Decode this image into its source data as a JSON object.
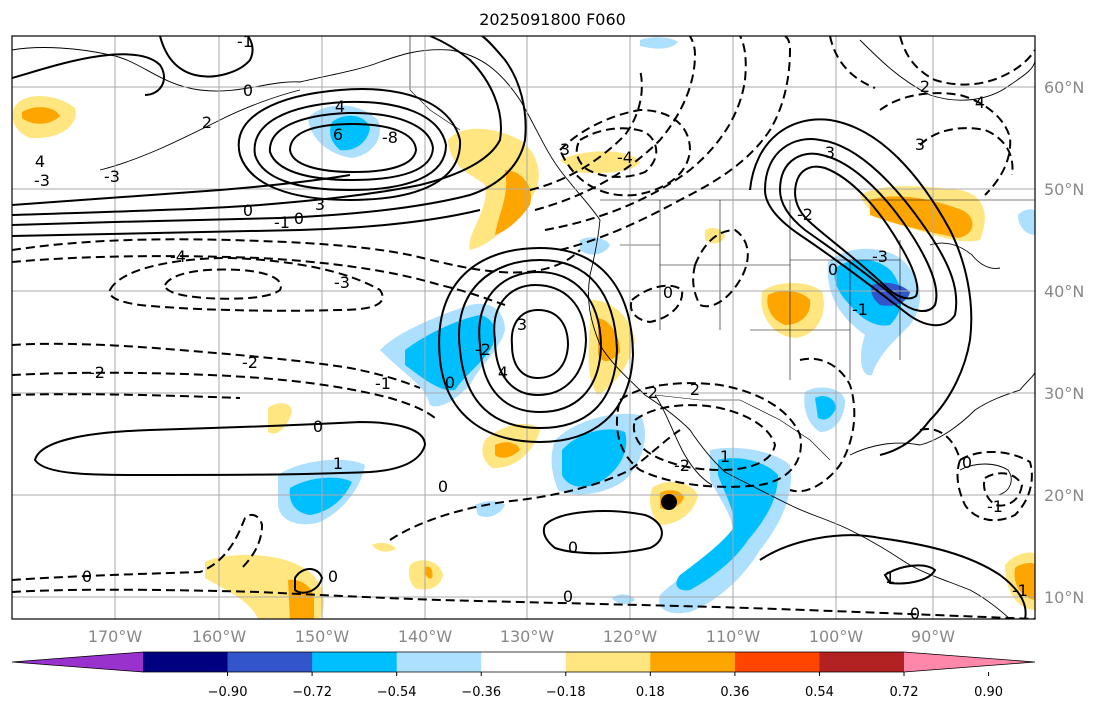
{
  "title": "2025091800 F060",
  "map": {
    "lon_labels": [
      "170°W",
      "160°W",
      "150°W",
      "140°W",
      "130°W",
      "120°W",
      "110°W",
      "100°W",
      "90°W"
    ],
    "lat_labels": [
      "60°N",
      "50°N",
      "40°N",
      "30°N",
      "20°N",
      "10°N"
    ],
    "contour_labels": [
      "-1",
      "0",
      "2",
      "3",
      "4",
      "6",
      "-8",
      "3",
      "-3",
      "4",
      "-4",
      "-3",
      "0",
      "-1",
      "0",
      "-4",
      "-3",
      "-2",
      "-2",
      "-1",
      "0",
      "3",
      "-2",
      "4",
      "0",
      "1",
      "0",
      "-2",
      "0",
      "1",
      "0",
      "0",
      "-2",
      "2",
      "-1",
      "-3",
      "0",
      "-2",
      "0",
      "4",
      "3",
      "2",
      "0",
      "-1",
      "3",
      "0",
      "-1",
      "1",
      "0"
    ],
    "colors": {
      "strong_neg_purple": "#9932CC",
      "navy": "#000080",
      "royal_blue": "#3355CC",
      "deep_sky": "#00BFFF",
      "light_sky": "#ADDFFF",
      "white": "#FFFFFF",
      "light_yellow": "#FFE680",
      "orange": "#FFA500",
      "red_orange": "#FF4500",
      "firebrick": "#B22222",
      "pink": "#FF88AA"
    },
    "center_marker": "storm-center-dot"
  },
  "colorbar": {
    "ticks": [
      "−0.90",
      "−0.72",
      "−0.54",
      "−0.36",
      "−0.18",
      "0.18",
      "0.36",
      "0.54",
      "0.72",
      "0.90"
    ],
    "colors": [
      "#9932CC",
      "#000080",
      "#3355CC",
      "#00BFFF",
      "#ADDFFF",
      "#FFFFFF",
      "#FFE680",
      "#FFA500",
      "#FF4500",
      "#B22222",
      "#FF88AA"
    ]
  }
}
